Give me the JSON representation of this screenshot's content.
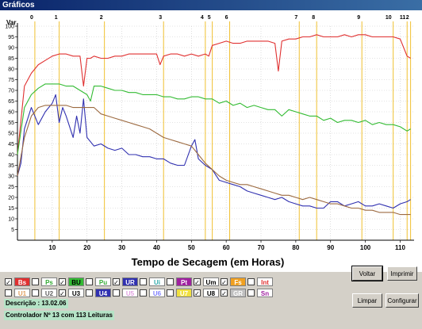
{
  "window": {
    "title": "Gráficos"
  },
  "chart_data": {
    "type": "line",
    "ylabel": "Var",
    "xlabel": "Tempo de Secagem (em Horas)",
    "xlim": [
      0,
      114
    ],
    "ylim": [
      0,
      100
    ],
    "x_ticks": [
      10,
      20,
      30,
      40,
      50,
      60,
      70,
      80,
      90,
      100,
      110
    ],
    "y_ticks": [
      5,
      10,
      15,
      20,
      25,
      30,
      35,
      40,
      45,
      50,
      55,
      60,
      65,
      70,
      75,
      80,
      85,
      90,
      95,
      100
    ],
    "grid": true,
    "markers": [
      {
        "label": "0",
        "x": 5
      },
      {
        "label": "1",
        "x": 12
      },
      {
        "label": "2",
        "x": 25
      },
      {
        "label": "3",
        "x": 42
      },
      {
        "label": "4",
        "x": 54
      },
      {
        "label": "5",
        "x": 56
      },
      {
        "label": "6",
        "x": 61
      },
      {
        "label": "7",
        "x": 81
      },
      {
        "label": "8",
        "x": 86
      },
      {
        "label": "9",
        "x": 99
      },
      {
        "label": "10",
        "x": 108
      },
      {
        "label": "11",
        "x": 112
      },
      {
        "label": "2",
        "x": 113
      }
    ],
    "series": [
      {
        "name": "Bs",
        "color": "#e03030",
        "x": [
          0,
          2,
          4,
          6,
          8,
          10,
          12,
          14,
          16,
          18,
          19,
          20,
          21,
          22,
          24,
          26,
          28,
          30,
          32,
          34,
          36,
          38,
          40,
          41,
          42,
          44,
          46,
          48,
          50,
          52,
          54,
          55,
          56,
          58,
          60,
          62,
          64,
          66,
          68,
          70,
          72,
          74,
          75,
          76,
          78,
          80,
          82,
          84,
          86,
          88,
          90,
          92,
          94,
          96,
          98,
          100,
          102,
          104,
          106,
          108,
          110,
          112,
          113
        ],
        "y": [
          40,
          72,
          78,
          82,
          84,
          86,
          87,
          87,
          86,
          86,
          72,
          85,
          85,
          86,
          85,
          85,
          86,
          86,
          87,
          87,
          87,
          87,
          87,
          82,
          86,
          87,
          87,
          86,
          87,
          86,
          87,
          86,
          91,
          92,
          93,
          92,
          92,
          93,
          93,
          93,
          93,
          92,
          79,
          93,
          94,
          94,
          95,
          95,
          96,
          95,
          95,
          95,
          96,
          95,
          96,
          96,
          95,
          95,
          95,
          95,
          94,
          86,
          85
        ]
      },
      {
        "name": "BU",
        "color": "#33bb33",
        "x": [
          0,
          2,
          4,
          6,
          8,
          10,
          12,
          14,
          16,
          18,
          20,
          21,
          22,
          24,
          26,
          28,
          30,
          32,
          34,
          36,
          38,
          40,
          42,
          44,
          46,
          48,
          50,
          52,
          54,
          56,
          58,
          60,
          62,
          64,
          66,
          68,
          70,
          72,
          74,
          76,
          78,
          80,
          82,
          84,
          86,
          88,
          90,
          92,
          94,
          96,
          98,
          100,
          102,
          104,
          106,
          108,
          110,
          112,
          113
        ],
        "y": [
          40,
          62,
          68,
          71,
          73,
          73,
          73,
          72,
          72,
          70,
          68,
          65,
          72,
          72,
          71,
          70,
          70,
          69,
          69,
          68,
          68,
          68,
          67,
          67,
          66,
          66,
          67,
          67,
          66,
          66,
          64,
          65,
          63,
          64,
          62,
          63,
          62,
          61,
          61,
          58,
          61,
          60,
          59,
          58,
          58,
          56,
          57,
          55,
          56,
          56,
          55,
          56,
          54,
          55,
          54,
          54,
          53,
          51,
          52
        ]
      },
      {
        "name": "UR",
        "color": "#3030b0",
        "x": [
          0,
          1,
          2,
          4,
          6,
          8,
          10,
          11,
          12,
          13,
          14,
          16,
          17,
          18,
          19,
          20,
          22,
          24,
          26,
          28,
          30,
          32,
          34,
          36,
          38,
          40,
          42,
          44,
          46,
          48,
          50,
          51,
          52,
          54,
          56,
          58,
          60,
          62,
          64,
          66,
          68,
          70,
          72,
          74,
          76,
          78,
          80,
          82,
          84,
          86,
          88,
          90,
          92,
          94,
          96,
          98,
          100,
          102,
          104,
          106,
          108,
          110,
          112,
          113
        ],
        "y": [
          30,
          36,
          52,
          62,
          54,
          60,
          64,
          68,
          55,
          62,
          58,
          48,
          58,
          50,
          66,
          48,
          44,
          45,
          43,
          42,
          43,
          40,
          40,
          39,
          39,
          38,
          38,
          36,
          35,
          35,
          44,
          47,
          38,
          35,
          33,
          28,
          27,
          26,
          25,
          23,
          22,
          21,
          20,
          19,
          20,
          18,
          17,
          16,
          16,
          15,
          15,
          18,
          18,
          16,
          17,
          18,
          16,
          16,
          17,
          16,
          15,
          17,
          18,
          19
        ]
      },
      {
        "name": "Um",
        "color": "#9c6a40",
        "x": [
          0,
          2,
          4,
          6,
          8,
          10,
          12,
          14,
          16,
          18,
          20,
          22,
          24,
          26,
          28,
          30,
          32,
          34,
          36,
          38,
          40,
          42,
          44,
          46,
          48,
          50,
          52,
          54,
          56,
          58,
          60,
          62,
          64,
          66,
          68,
          70,
          72,
          74,
          76,
          78,
          80,
          82,
          84,
          86,
          88,
          90,
          92,
          94,
          96,
          98,
          100,
          102,
          104,
          106,
          108,
          110,
          112,
          113
        ],
        "y": [
          30,
          48,
          58,
          62,
          63,
          63,
          63,
          63,
          62,
          62,
          62,
          62,
          59,
          58,
          57,
          56,
          55,
          54,
          53,
          52,
          50,
          48,
          47,
          46,
          45,
          44,
          40,
          36,
          33,
          30,
          28,
          27,
          26,
          26,
          25,
          24,
          23,
          22,
          21,
          21,
          20,
          19,
          20,
          19,
          18,
          17,
          17,
          16,
          15,
          15,
          14,
          14,
          13,
          13,
          13,
          12,
          12,
          12
        ]
      }
    ]
  },
  "legend": {
    "row1": [
      {
        "label": "Bs",
        "checked": true,
        "color": "#e03030",
        "text_color": "#ffffff"
      },
      {
        "label": "Ps",
        "checked": false,
        "color": "#ffffff",
        "text_color": "#33aa33"
      },
      {
        "label": "BU",
        "checked": true,
        "color": "#33bb33",
        "text_color": "#000000"
      },
      {
        "label": "Pu",
        "checked": false,
        "color": "#ffffff",
        "text_color": "#33aa33"
      },
      {
        "label": "UR",
        "checked": true,
        "color": "#3030b0",
        "text_color": "#ffffff"
      },
      {
        "label": "Ui",
        "checked": false,
        "color": "#ffffff",
        "text_color": "#33aaaa"
      },
      {
        "label": "Pt",
        "checked": false,
        "color": "#a020a0",
        "text_color": "#ffffff"
      },
      {
        "label": "Um",
        "checked": true,
        "color": "#ffffff",
        "text_color": "#000000"
      },
      {
        "label": "Fs",
        "checked": true,
        "color": "#f0a020",
        "text_color": "#ffffff"
      },
      {
        "label": "Int",
        "checked": false,
        "color": "#ffffff",
        "text_color": "#e03030"
      }
    ],
    "row2": [
      {
        "label": "U1",
        "checked": false,
        "color": "#ffffff",
        "text_color": "#e0a060"
      },
      {
        "label": "U2",
        "checked": false,
        "color": "#ffffff",
        "text_color": "#606060"
      },
      {
        "label": "U3",
        "checked": true,
        "color": "#ffffff",
        "text_color": "#000000"
      },
      {
        "label": "U4",
        "checked": false,
        "color": "#3030b0",
        "text_color": "#ffffff"
      },
      {
        "label": "U5",
        "checked": false,
        "color": "#ffffff",
        "text_color": "#e0a0e0"
      },
      {
        "label": "U6",
        "checked": false,
        "color": "#ffffff",
        "text_color": "#8080ff"
      },
      {
        "label": "U7",
        "checked": false,
        "color": "#f0e040",
        "text_color": "#ffffff"
      },
      {
        "label": "U8",
        "checked": true,
        "color": "#ffffff",
        "text_color": "#000000"
      },
      {
        "label": "GR",
        "checked": true,
        "color": "#c0c0c0",
        "text_color": "#ffffff"
      },
      {
        "label": "Sn",
        "checked": false,
        "color": "#ffffff",
        "text_color": "#a020a0"
      }
    ]
  },
  "info": {
    "description": "Descrição : 13.02.06",
    "controller": "Controlador Nº 13 com 113 Leituras"
  },
  "buttons": {
    "voltar": "Voltar",
    "imprimir": "Imprimir",
    "limpar": "Limpar",
    "configurar": "Configurar"
  }
}
